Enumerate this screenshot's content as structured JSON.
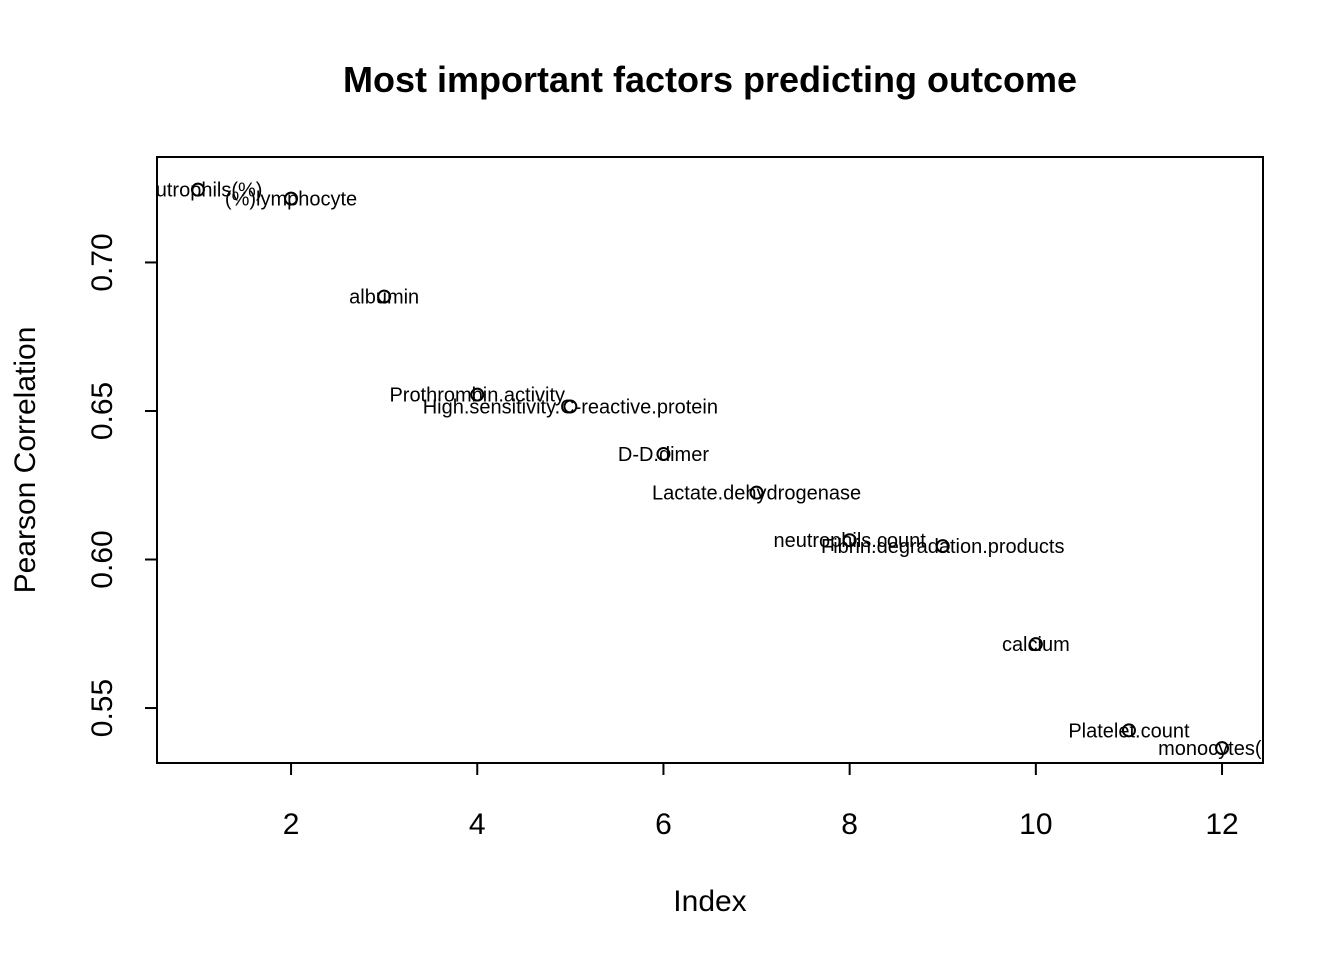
{
  "chart_data": {
    "type": "scatter",
    "title": "Most important factors predicting outcome",
    "xlabel": "Index",
    "ylabel": "Pearson Correlation",
    "xlim": [
      0.56,
      12.44
    ],
    "ylim": [
      0.5315,
      0.7355
    ],
    "x_ticks": [
      2,
      4,
      6,
      8,
      10,
      12
    ],
    "y_ticks": [
      0.55,
      0.6,
      0.65,
      0.7
    ],
    "x_tick_labels": [
      "2",
      "4",
      "6",
      "8",
      "10",
      "12"
    ],
    "y_tick_labels": [
      "0.55",
      "0.60",
      "0.65",
      "0.70"
    ],
    "grid": false,
    "legend": "none",
    "points": [
      {
        "x": 1,
        "y": 0.7245,
        "label": "neutrophils(%)"
      },
      {
        "x": 2,
        "y": 0.7215,
        "label": "(%)lymphocyte"
      },
      {
        "x": 3,
        "y": 0.6885,
        "label": "albumin"
      },
      {
        "x": 4,
        "y": 0.6555,
        "label": "Prothrombin.activity"
      },
      {
        "x": 5,
        "y": 0.6515,
        "label": "High.sensitivity.C-reactive.protein"
      },
      {
        "x": 6,
        "y": 0.6355,
        "label": "D-D.dimer"
      },
      {
        "x": 7,
        "y": 0.6225,
        "label": "Lactate.dehydrogenase"
      },
      {
        "x": 8,
        "y": 0.6065,
        "label": "neutrophils.count"
      },
      {
        "x": 9,
        "y": 0.6045,
        "label": "Fibrin.degradation.products"
      },
      {
        "x": 10,
        "y": 0.5715,
        "label": "calcium"
      },
      {
        "x": 11,
        "y": 0.5425,
        "label": "Platelet.count"
      },
      {
        "x": 12,
        "y": 0.5365,
        "label": "monocytes(%)"
      }
    ]
  }
}
